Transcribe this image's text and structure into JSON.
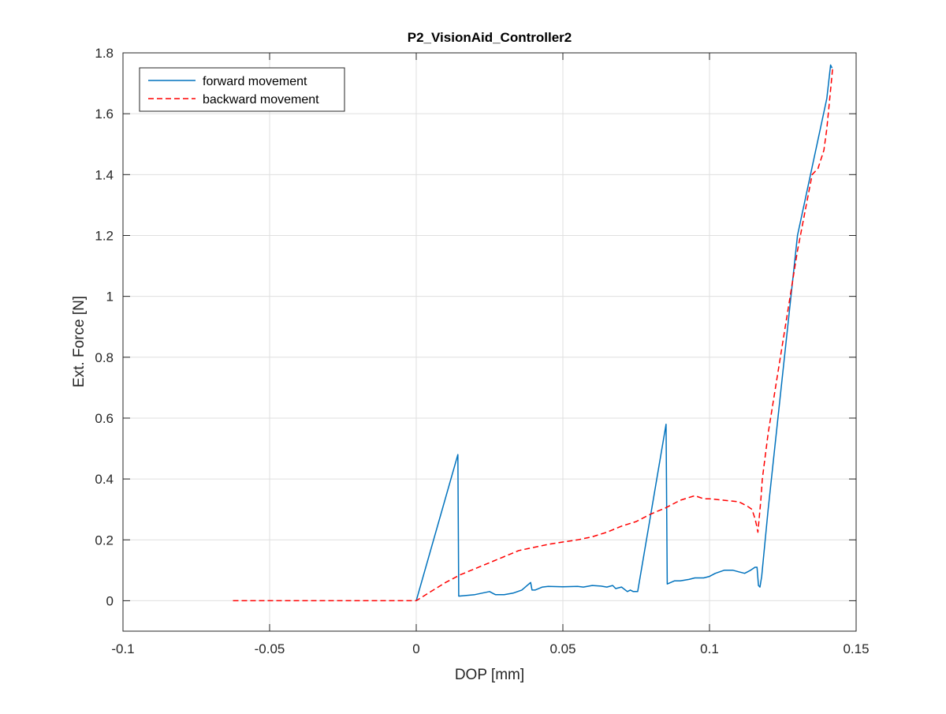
{
  "chart_data": {
    "type": "line",
    "title": "P2_VisionAid_Controller2",
    "xlabel": "DOP [mm]",
    "ylabel": "Ext. Force [N]",
    "xlim": [
      -0.1,
      0.15
    ],
    "ylim": [
      -0.1,
      1.8
    ],
    "xticks": [
      -0.1,
      -0.05,
      0,
      0.05,
      0.1,
      0.15
    ],
    "xtick_labels": [
      "-0.1",
      "-0.05",
      "0",
      "0.05",
      "0.1",
      "0.15"
    ],
    "yticks": [
      0,
      0.2,
      0.4,
      0.6,
      0.8,
      1,
      1.2,
      1.4,
      1.6,
      1.8
    ],
    "ytick_labels": [
      "0",
      "0.2",
      "0.4",
      "0.6",
      "0.8",
      "1",
      "1.2",
      "1.4",
      "1.6",
      "1.8"
    ],
    "grid": true,
    "legend_position": "top-left",
    "series": [
      {
        "name": "forward movement",
        "color": "#0072BD",
        "style": "solid",
        "x": [
          0,
          0.0142,
          0.0145,
          0.02,
          0.025,
          0.026,
          0.027,
          0.03,
          0.033,
          0.036,
          0.039,
          0.0395,
          0.0405,
          0.043,
          0.045,
          0.05,
          0.055,
          0.057,
          0.06,
          0.063,
          0.065,
          0.067,
          0.068,
          0.07,
          0.072,
          0.073,
          0.074,
          0.0755,
          0.0852,
          0.0856,
          0.088,
          0.09,
          0.093,
          0.095,
          0.098,
          0.1,
          0.102,
          0.105,
          0.108,
          0.11,
          0.112,
          0.114,
          0.1155,
          0.1162,
          0.1167,
          0.1172,
          0.1178,
          0.12,
          0.13,
          0.14,
          0.1413,
          0.1418
        ],
        "y": [
          0,
          0.48,
          0.015,
          0.02,
          0.03,
          0.025,
          0.02,
          0.02,
          0.025,
          0.035,
          0.06,
          0.035,
          0.035,
          0.045,
          0.047,
          0.046,
          0.047,
          0.045,
          0.05,
          0.048,
          0.045,
          0.05,
          0.04,
          0.045,
          0.03,
          0.035,
          0.03,
          0.03,
          0.58,
          0.055,
          0.065,
          0.065,
          0.07,
          0.075,
          0.075,
          0.08,
          0.09,
          0.1,
          0.1,
          0.095,
          0.09,
          0.1,
          0.11,
          0.11,
          0.05,
          0.045,
          0.08,
          0.3,
          1.2,
          1.65,
          1.76,
          1.75
        ]
      },
      {
        "name": "backward movement",
        "color": "#FF0000",
        "style": "dashed",
        "x": [
          -0.0625,
          -0.03,
          0,
          0.005,
          0.01,
          0.015,
          0.02,
          0.025,
          0.03,
          0.035,
          0.04,
          0.045,
          0.05,
          0.055,
          0.06,
          0.065,
          0.07,
          0.075,
          0.08,
          0.085,
          0.09,
          0.095,
          0.098,
          0.1,
          0.105,
          0.11,
          0.113,
          0.1145,
          0.1155,
          0.116,
          0.1165,
          0.1175,
          0.118,
          0.12,
          0.125,
          0.13,
          0.135,
          0.137,
          0.139,
          0.14,
          0.1415,
          0.142
        ],
        "y": [
          0,
          0,
          0,
          0.03,
          0.06,
          0.085,
          0.105,
          0.125,
          0.145,
          0.165,
          0.175,
          0.185,
          0.193,
          0.2,
          0.21,
          0.225,
          0.245,
          0.26,
          0.285,
          0.305,
          0.33,
          0.345,
          0.335,
          0.335,
          0.33,
          0.325,
          0.31,
          0.3,
          0.27,
          0.25,
          0.225,
          0.33,
          0.4,
          0.55,
          0.85,
          1.15,
          1.4,
          1.42,
          1.48,
          1.55,
          1.7,
          1.75
        ]
      }
    ]
  }
}
